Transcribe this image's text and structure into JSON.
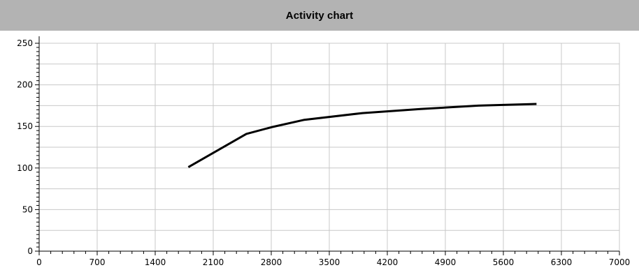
{
  "chart_data": {
    "type": "line",
    "title": "Activity chart",
    "xlabel": "",
    "ylabel": "",
    "xlim": [
      0,
      7000
    ],
    "ylim": [
      0,
      250
    ],
    "x_ticks": [
      0,
      700,
      1400,
      2100,
      2800,
      3500,
      4200,
      4900,
      5600,
      6300,
      7000
    ],
    "y_ticks": [
      0,
      50,
      100,
      150,
      200,
      250
    ],
    "grid": true,
    "series": [
      {
        "color": "#000000",
        "x": [
          1800,
          2500,
          2800,
          3200,
          3900,
          4600,
          5300,
          6000
        ],
        "y": [
          101,
          141,
          149,
          158,
          166,
          171,
          175,
          177
        ]
      }
    ]
  },
  "colors": {
    "title_bar": "#b3b3b3",
    "grid": "#c8c8c8",
    "axis": "#000000",
    "line": "#000000"
  }
}
